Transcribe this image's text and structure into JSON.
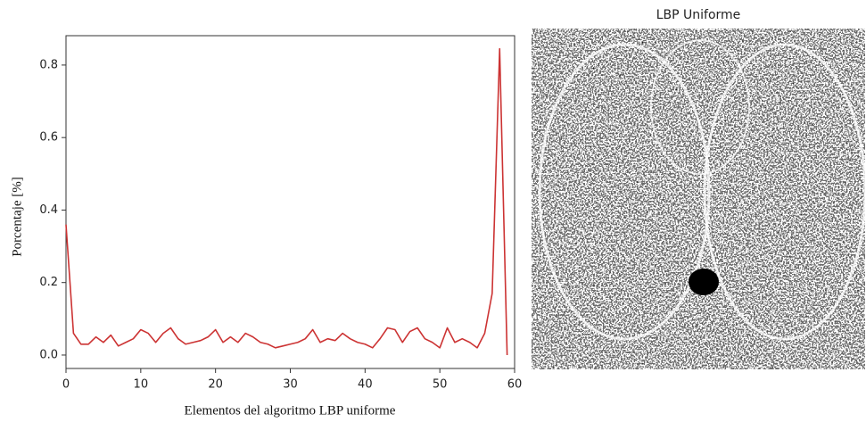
{
  "chart_data": {
    "type": "line",
    "xlabel": "Elementos del algoritmo LBP uniforme",
    "ylabel": "Porcentaje [%]",
    "x": [
      0,
      1,
      2,
      3,
      4,
      5,
      6,
      7,
      8,
      9,
      10,
      11,
      12,
      13,
      14,
      15,
      16,
      17,
      18,
      19,
      20,
      21,
      22,
      23,
      24,
      25,
      26,
      27,
      28,
      29,
      30,
      31,
      32,
      33,
      34,
      35,
      36,
      37,
      38,
      39,
      40,
      41,
      42,
      43,
      44,
      45,
      46,
      47,
      48,
      49,
      50,
      51,
      52,
      53,
      54,
      55,
      56,
      57,
      58,
      59
    ],
    "values": [
      0.36,
      0.06,
      0.03,
      0.03,
      0.05,
      0.035,
      0.055,
      0.025,
      0.035,
      0.045,
      0.07,
      0.06,
      0.035,
      0.06,
      0.075,
      0.045,
      0.03,
      0.035,
      0.04,
      0.05,
      0.07,
      0.035,
      0.05,
      0.035,
      0.06,
      0.05,
      0.035,
      0.03,
      0.02,
      0.025,
      0.03,
      0.035,
      0.045,
      0.07,
      0.035,
      0.045,
      0.04,
      0.06,
      0.045,
      0.035,
      0.03,
      0.02,
      0.045,
      0.075,
      0.07,
      0.035,
      0.065,
      0.075,
      0.045,
      0.035,
      0.02,
      0.075,
      0.035,
      0.045,
      0.035,
      0.02,
      0.06,
      0.17,
      0.845,
      0
    ],
    "color": "#cc3333",
    "xlim": [
      0,
      60
    ],
    "xticks": [
      0,
      10,
      20,
      30,
      40,
      50,
      60
    ],
    "ylim": [
      -0.037,
      0.881
    ],
    "yticks": [
      {
        "value": 0,
        "label": "0.0"
      },
      0.2,
      0.4,
      0.6,
      0.8
    ],
    "grid": false
  },
  "image": {
    "title": "LBP Uniforme"
  }
}
